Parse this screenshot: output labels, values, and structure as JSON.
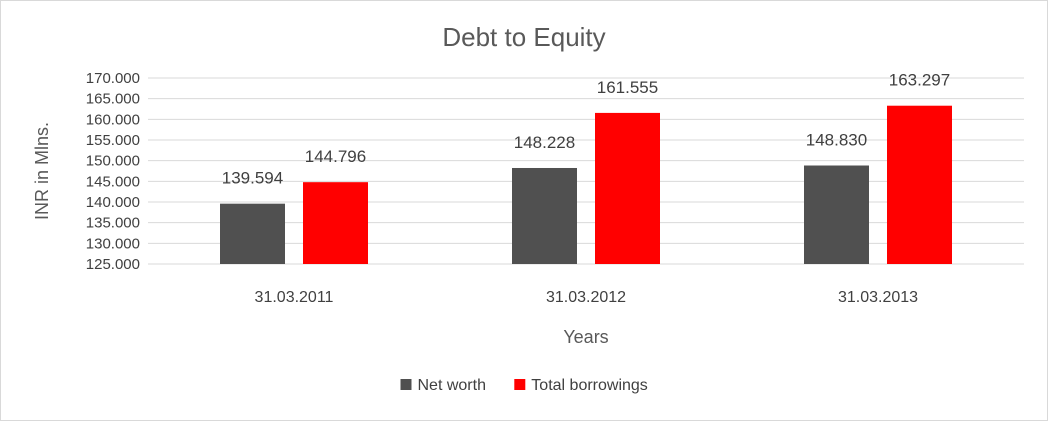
{
  "chart_data": {
    "type": "bar",
    "title": "Debt to Equity",
    "xlabel": "Years",
    "ylabel": "INR in Mlns.",
    "categories": [
      "31.03.2011",
      "31.03.2012",
      "31.03.2013"
    ],
    "series": [
      {
        "name": "Net worth",
        "color": "#505050",
        "values": [
          139.594,
          148.228,
          148.83
        ],
        "labels": [
          "139.594",
          "148.228",
          "148.830"
        ]
      },
      {
        "name": "Total borrowings",
        "color": "#ff0000",
        "values": [
          144.796,
          161.555,
          163.297
        ],
        "labels": [
          "144.796",
          "161.555",
          "163.297"
        ]
      }
    ],
    "ylim": [
      125,
      170
    ],
    "yticks": [
      125,
      130,
      135,
      140,
      145,
      150,
      155,
      160,
      165,
      170
    ],
    "ytick_labels": [
      "125.000",
      "130.000",
      "135.000",
      "140.000",
      "145.000",
      "150.000",
      "155.000",
      "160.000",
      "165.000",
      "170.000"
    ],
    "grid": true,
    "legend_position": "bottom"
  }
}
